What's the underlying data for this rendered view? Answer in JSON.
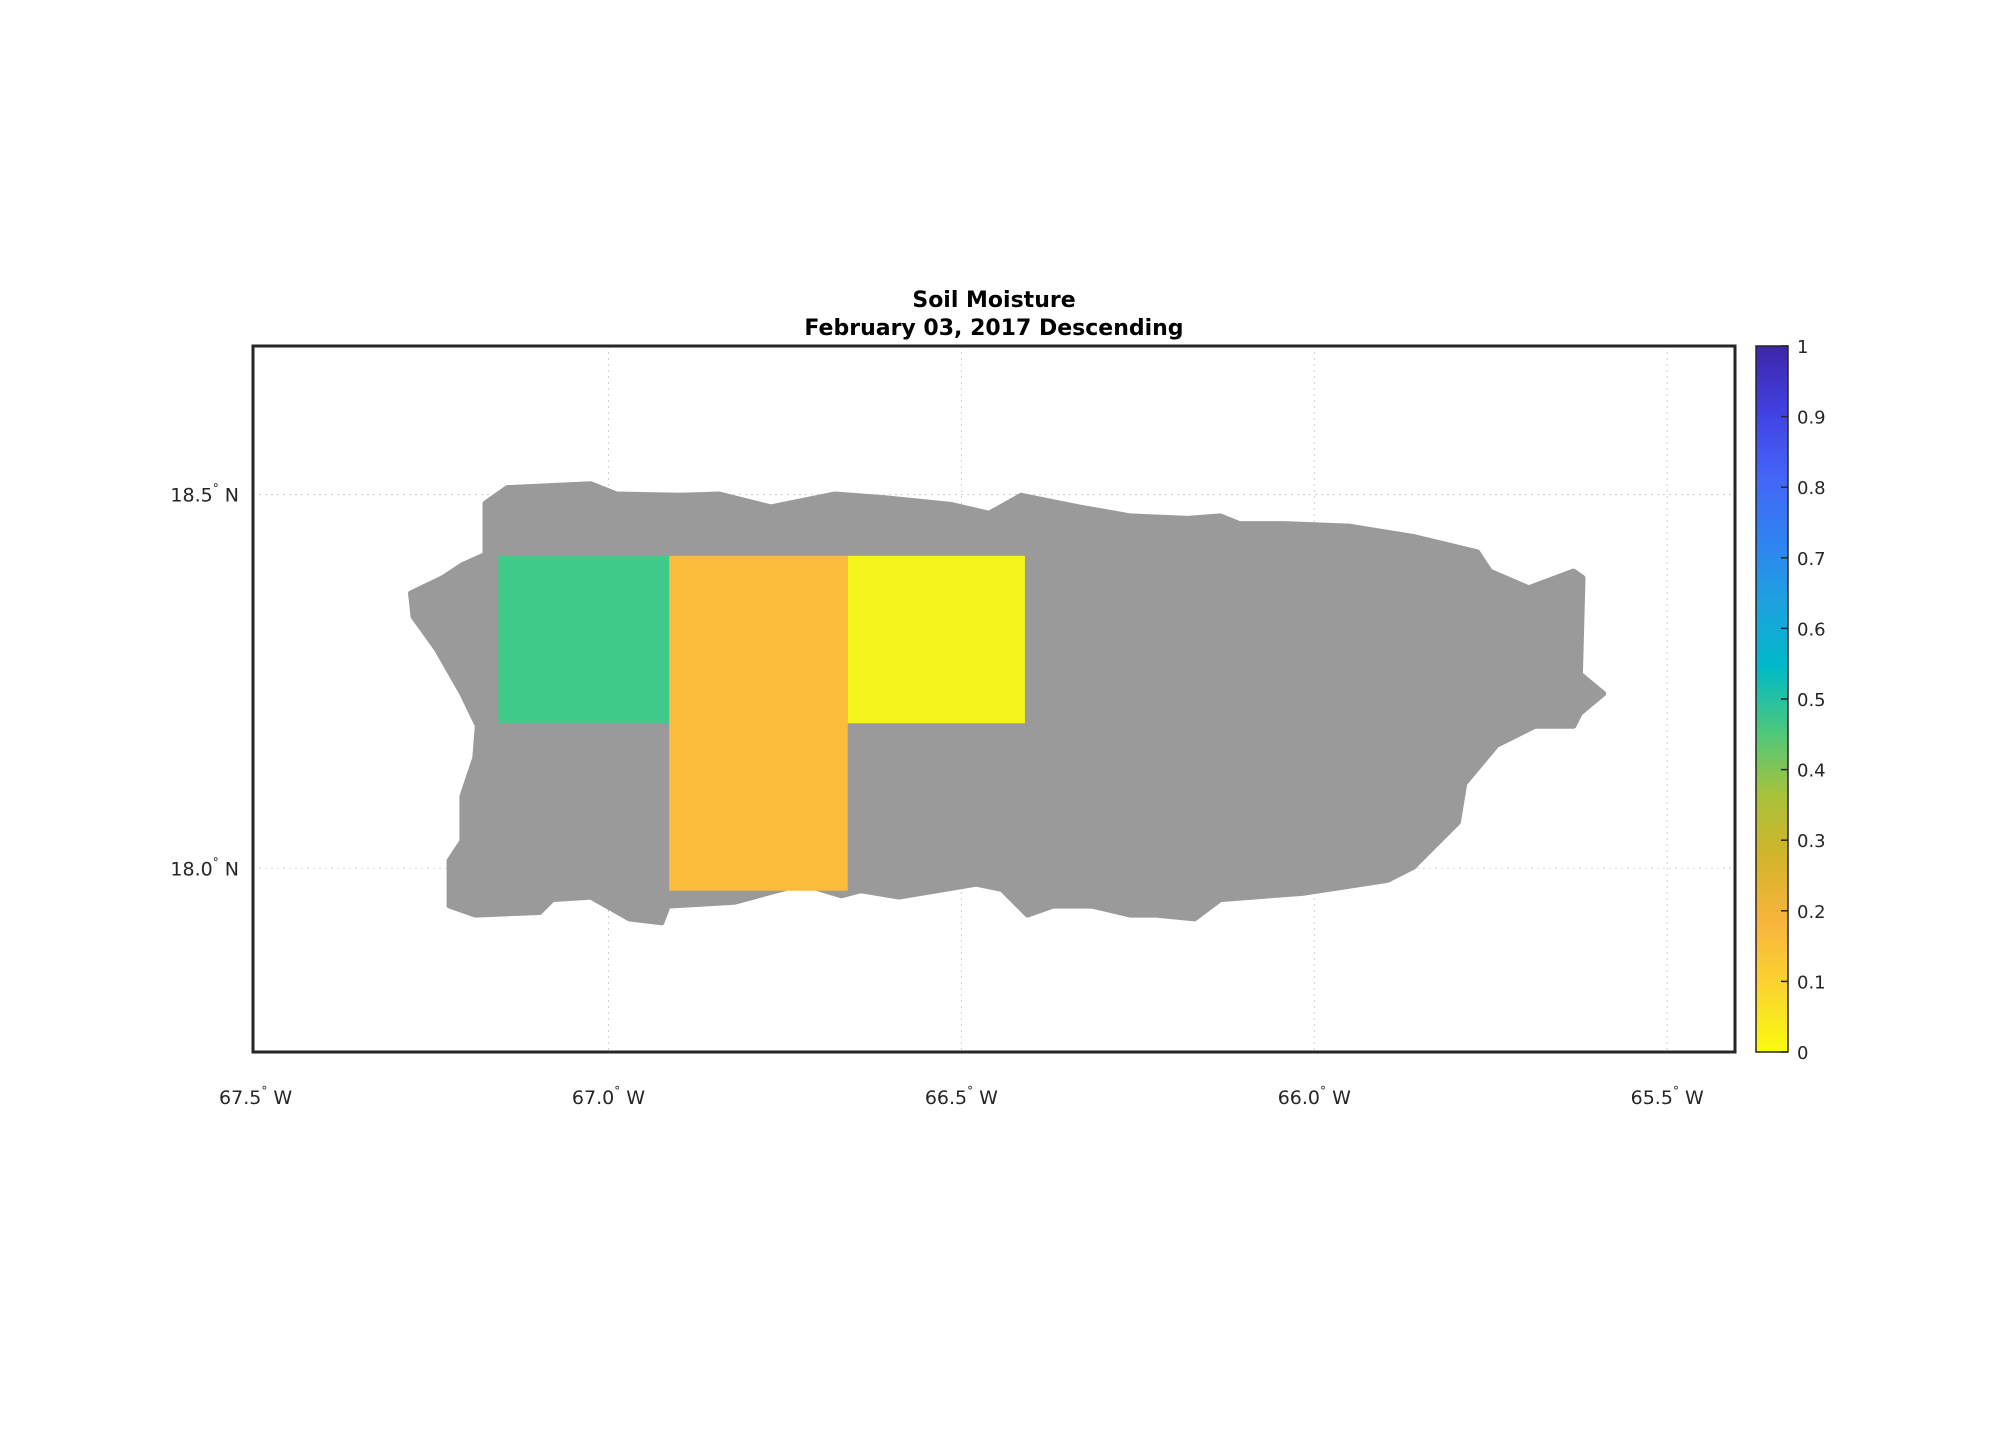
{
  "chart_data": {
    "type": "heatmap",
    "title": "Soil Moisture",
    "subtitle": "February 03, 2017 Descending",
    "xlim": [
      -67.5,
      -65.4
    ],
    "ylim": [
      17.75,
      18.7
    ],
    "grid": true,
    "x_ticks": [
      {
        "value": -67.5,
        "label": "67.5",
        "suffix": "W"
      },
      {
        "value": -67.0,
        "label": "67.0",
        "suffix": "W"
      },
      {
        "value": -66.5,
        "label": "66.5",
        "suffix": "W"
      },
      {
        "value": -66.0,
        "label": "66.0",
        "suffix": "W"
      },
      {
        "value": -65.5,
        "label": "65.5",
        "suffix": "W"
      }
    ],
    "y_ticks": [
      {
        "value": 18.5,
        "label": "18.5",
        "suffix": "N"
      },
      {
        "value": 18.0,
        "label": "18.0",
        "suffix": "N"
      }
    ],
    "degree_symbol": "°",
    "land_color": "#9a9a9a",
    "cells": [
      {
        "lon": [
          -67.156,
          -66.914
        ],
        "lat": [
          18.194,
          18.418
        ],
        "value": 0.42,
        "color": "#3fca8a"
      },
      {
        "lon": [
          -66.914,
          -66.661
        ],
        "lat": [
          17.97,
          18.418
        ],
        "value": 0.17,
        "color": "#fbbc3c"
      },
      {
        "lon": [
          -66.661,
          -66.41
        ],
        "lat": [
          18.194,
          18.418
        ],
        "value": 0.04,
        "color": "#f6f41d"
      }
    ],
    "colorbar": {
      "range": [
        0,
        1
      ],
      "placement": "right",
      "ticks": [
        "0",
        "0.1",
        "0.2",
        "0.3",
        "0.4",
        "0.5",
        "0.6",
        "0.7",
        "0.8",
        "0.9",
        "1"
      ],
      "stops": [
        "#f9fb0e",
        "#fbd52e",
        "#f9b53d",
        "#d4b42a",
        "#a8c23a",
        "#4bc87c",
        "#00b9c8",
        "#1ea2e0",
        "#3081f2",
        "#4464f7",
        "#4140df",
        "#3e26a8"
      ]
    }
  }
}
